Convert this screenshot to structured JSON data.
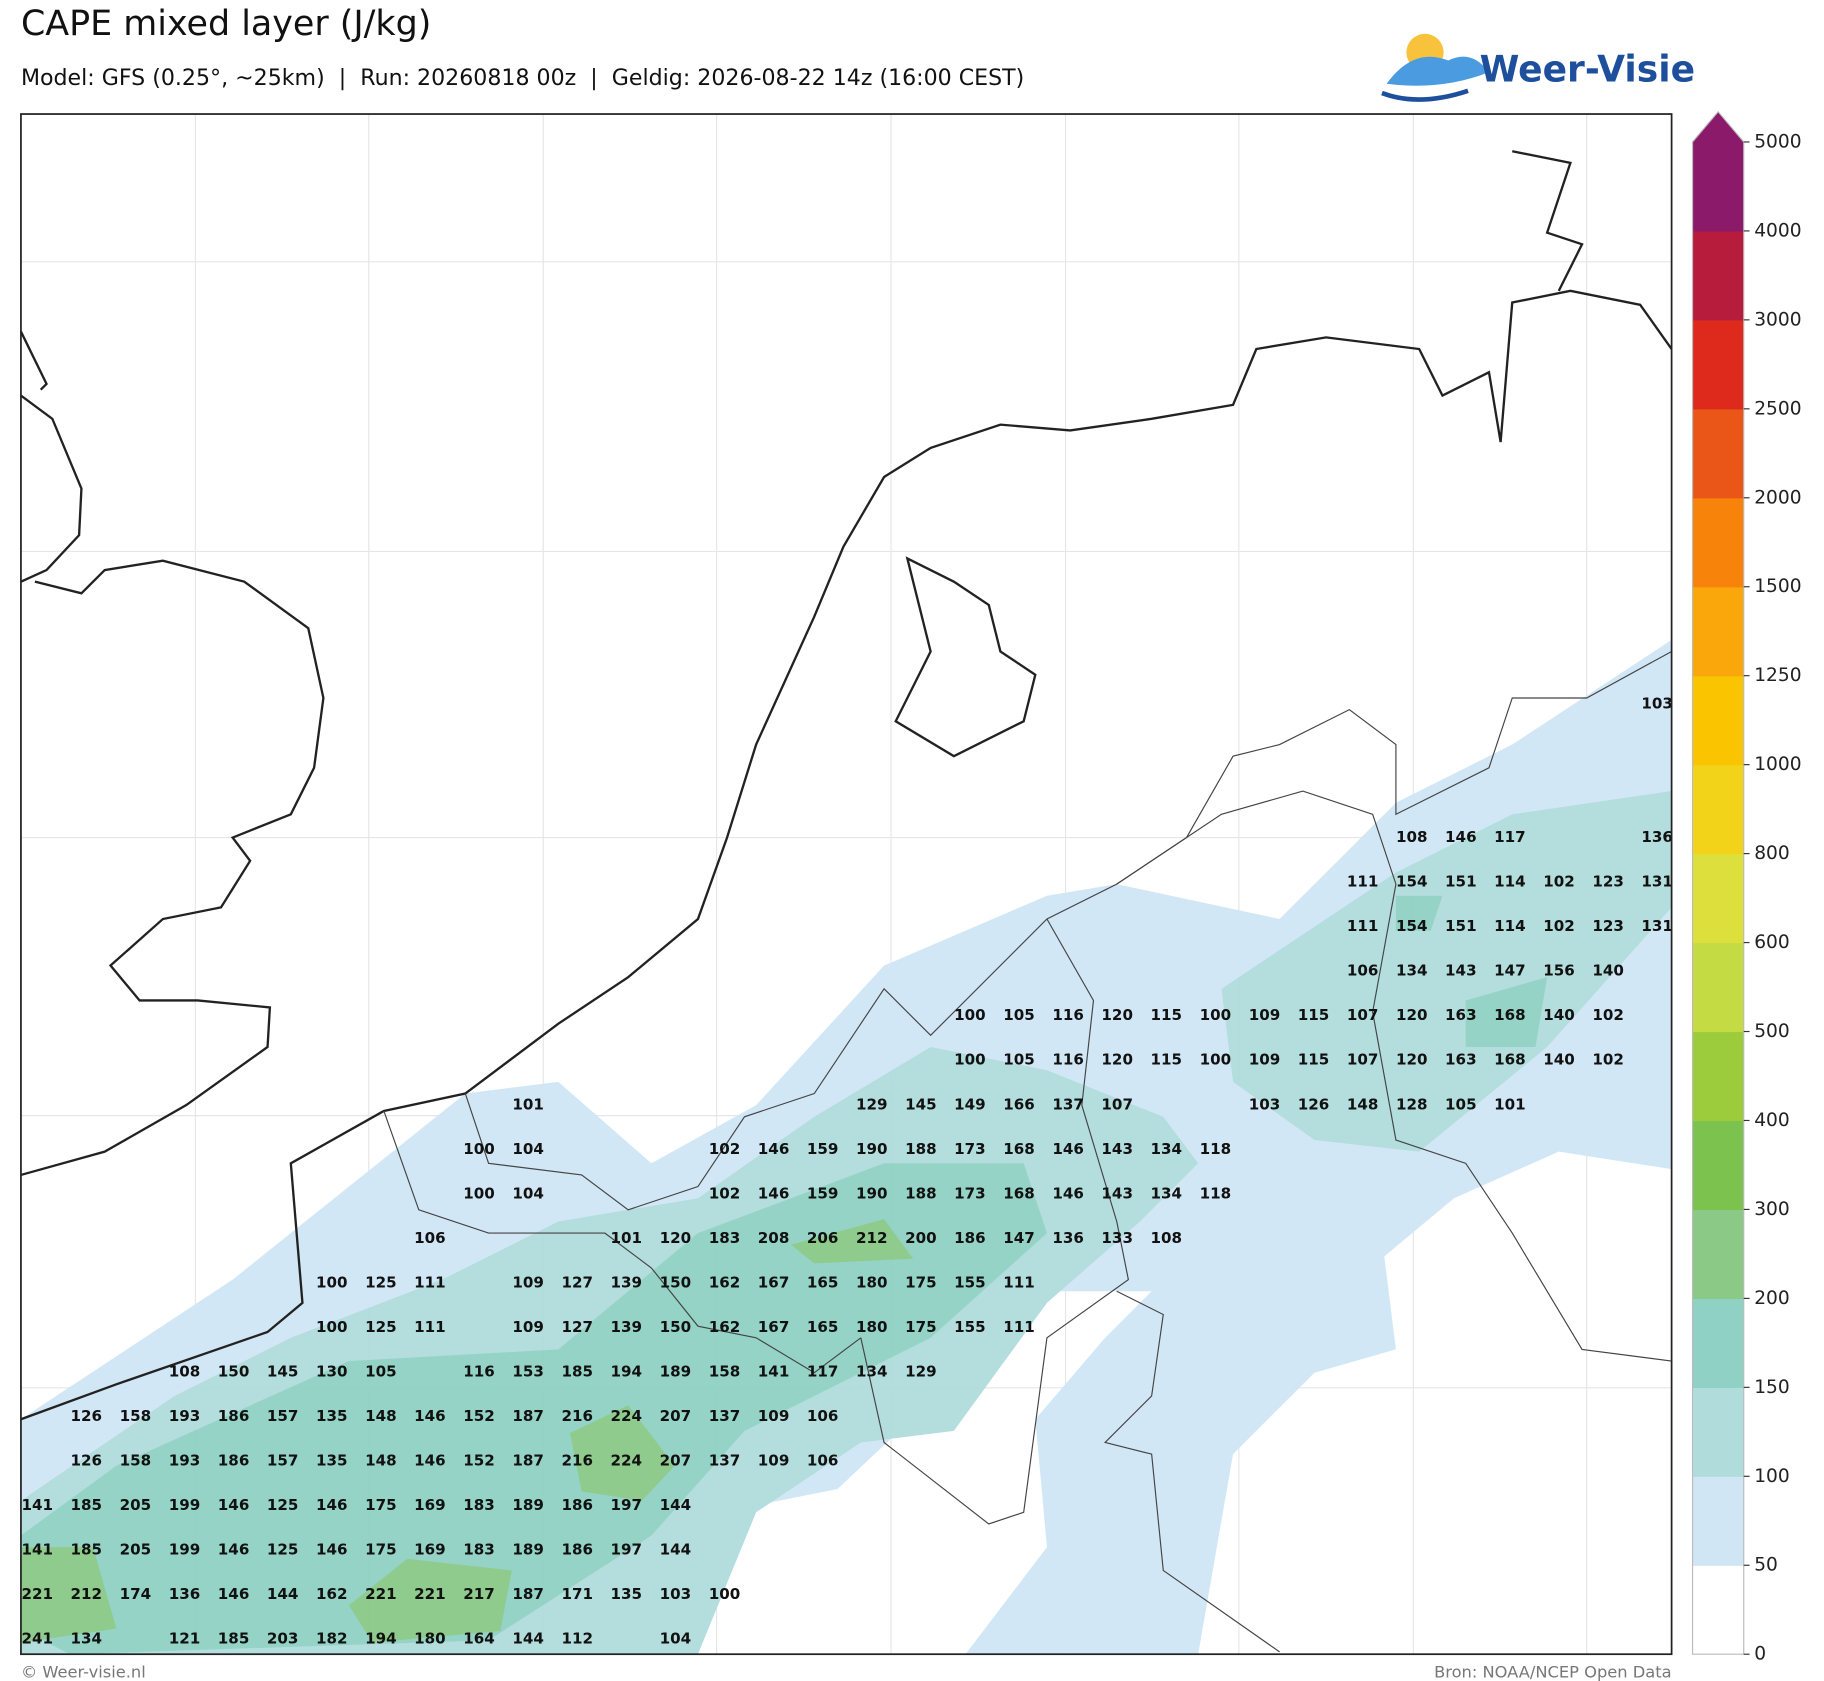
{
  "header": {
    "title": "CAPE mixed layer (J/kg)",
    "subtitle": "Model: GFS (0.25°, ~25km)  |  Run: 20260818 00z  |  Geldig: 2026-08-22 14z (16:00 CEST)",
    "logo": "Weer-Visie"
  },
  "grid": {
    "rows": [
      [
        null,
        null,
        null,
        null,
        null,
        null,
        null,
        null,
        null,
        null,
        null,
        null,
        null,
        null,
        null,
        null,
        null,
        null,
        null,
        null,
        null,
        null,
        null,
        null,
        null,
        null,
        null,
        null,
        null,
        null,
        null,
        null,
        null,
        103
      ],
      [],
      [],
      [
        null,
        null,
        null,
        null,
        null,
        null,
        null,
        null,
        null,
        null,
        null,
        null,
        null,
        null,
        null,
        null,
        null,
        null,
        null,
        null,
        null,
        null,
        null,
        null,
        null,
        null,
        null,
        null,
        108,
        146,
        117,
        null,
        null,
        136
      ],
      [
        null,
        null,
        null,
        null,
        null,
        null,
        null,
        null,
        null,
        null,
        null,
        null,
        null,
        null,
        null,
        null,
        null,
        null,
        null,
        null,
        null,
        null,
        null,
        null,
        null,
        null,
        null,
        111,
        154,
        151,
        114,
        102,
        123,
        131
      ],
      [
        null,
        null,
        null,
        null,
        null,
        null,
        null,
        null,
        null,
        null,
        null,
        null,
        null,
        null,
        null,
        null,
        null,
        null,
        null,
        null,
        null,
        null,
        null,
        null,
        null,
        null,
        null,
        111,
        154,
        151,
        114,
        102,
        123,
        131
      ],
      [
        null,
        null,
        null,
        null,
        null,
        null,
        null,
        null,
        null,
        null,
        null,
        null,
        null,
        null,
        null,
        null,
        null,
        null,
        null,
        null,
        null,
        null,
        null,
        null,
        null,
        null,
        null,
        106,
        134,
        143,
        147,
        156,
        140
      ],
      [
        null,
        null,
        null,
        null,
        null,
        null,
        null,
        null,
        null,
        null,
        null,
        null,
        null,
        null,
        null,
        null,
        null,
        null,
        null,
        100,
        105,
        116,
        120,
        115,
        100,
        109,
        115,
        107,
        120,
        163,
        168,
        140,
        102
      ],
      [
        null,
        null,
        null,
        null,
        null,
        null,
        null,
        null,
        null,
        null,
        null,
        null,
        null,
        null,
        null,
        null,
        null,
        null,
        null,
        100,
        105,
        116,
        120,
        115,
        100,
        109,
        115,
        107,
        120,
        163,
        168,
        140,
        102
      ],
      [
        null,
        null,
        null,
        null,
        null,
        null,
        null,
        null,
        null,
        null,
        101,
        null,
        null,
        null,
        null,
        null,
        null,
        129,
        145,
        149,
        166,
        137,
        107,
        null,
        null,
        103,
        126,
        148,
        128,
        105,
        101
      ],
      [
        null,
        null,
        null,
        null,
        null,
        null,
        null,
        null,
        null,
        100,
        104,
        null,
        null,
        null,
        102,
        146,
        159,
        190,
        188,
        173,
        168,
        146,
        143,
        134,
        118
      ],
      [
        null,
        null,
        null,
        null,
        null,
        null,
        null,
        null,
        null,
        100,
        104,
        null,
        null,
        null,
        102,
        146,
        159,
        190,
        188,
        173,
        168,
        146,
        143,
        134,
        118
      ],
      [
        null,
        null,
        null,
        null,
        null,
        null,
        null,
        null,
        106,
        null,
        null,
        null,
        101,
        120,
        183,
        208,
        206,
        212,
        200,
        186,
        147,
        136,
        133,
        108
      ],
      [
        null,
        null,
        null,
        null,
        null,
        null,
        100,
        125,
        111,
        null,
        109,
        127,
        139,
        150,
        162,
        167,
        165,
        180,
        175,
        155,
        111
      ],
      [
        null,
        null,
        null,
        null,
        null,
        null,
        100,
        125,
        111,
        null,
        109,
        127,
        139,
        150,
        162,
        167,
        165,
        180,
        175,
        155,
        111
      ],
      [
        null,
        null,
        null,
        108,
        150,
        145,
        130,
        105,
        null,
        116,
        153,
        185,
        194,
        189,
        158,
        141,
        117,
        134,
        129
      ],
      [
        null,
        126,
        158,
        193,
        186,
        157,
        135,
        148,
        146,
        152,
        187,
        216,
        224,
        207,
        137,
        109,
        106
      ],
      [
        null,
        126,
        158,
        193,
        186,
        157,
        135,
        148,
        146,
        152,
        187,
        216,
        224,
        207,
        137,
        109,
        106
      ],
      [
        141,
        185,
        205,
        199,
        146,
        125,
        146,
        175,
        169,
        183,
        189,
        186,
        197,
        144
      ],
      [
        141,
        185,
        205,
        199,
        146,
        125,
        146,
        175,
        169,
        183,
        189,
        186,
        197,
        144
      ],
      [
        221,
        212,
        174,
        136,
        146,
        144,
        162,
        221,
        221,
        217,
        187,
        171,
        135,
        103,
        100
      ],
      [
        241,
        134,
        null,
        121,
        185,
        203,
        182,
        194,
        180,
        164,
        144,
        112,
        null,
        104
      ]
    ]
  },
  "colorbar": {
    "ticks": [
      0,
      50,
      100,
      150,
      200,
      300,
      400,
      500,
      600,
      800,
      1000,
      1250,
      1500,
      2000,
      2500,
      3000,
      4000,
      5000
    ],
    "colors": [
      "#ffffff",
      "#d0e6f5",
      "#b1dcdc",
      "#8fd1c4",
      "#8ac986",
      "#7cc24e",
      "#9ccc3c",
      "#c5db44",
      "#dde03c",
      "#f3d31a",
      "#fbc400",
      "#f9a70b",
      "#f8830a",
      "#ea5518",
      "#de2a1d",
      "#b71c3c",
      "#8b1a6b"
    ]
  },
  "footer": {
    "left": "© Weer-visie.nl",
    "right": "Bron: NOAA/NCEP Open Data"
  }
}
